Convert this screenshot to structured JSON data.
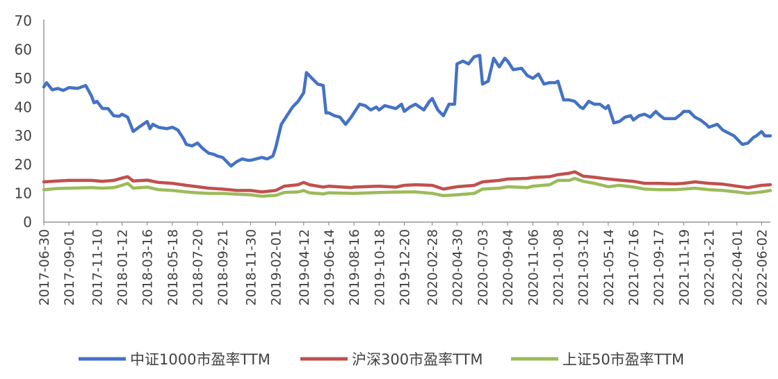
{
  "chart_data": {
    "type": "line",
    "title": "",
    "xlabel": "",
    "ylabel": "",
    "ylim": [
      0,
      70
    ],
    "yticks": [
      "0",
      "10",
      "20",
      "30",
      "40",
      "50",
      "60",
      "70"
    ],
    "grid": false,
    "legend_position": "bottom",
    "xtick_labels": [
      "2017-06-30",
      "2017-09-01",
      "2017-11-10",
      "2018-01-12",
      "2018-03-16",
      "2018-05-18",
      "2018-07-20",
      "2018-09-21",
      "2018-11-30",
      "2019-02-01",
      "2019-04-12",
      "2019-06-14",
      "2019-08-16",
      "2019-10-18",
      "2019-12-20",
      "2020-02-28",
      "2020-04-30",
      "2020-07-03",
      "2020-09-04",
      "2020-11-06",
      "2021-01-08",
      "2021-03-12",
      "2021-05-14",
      "2021-07-16",
      "2021-09-17",
      "2021-11-19",
      "2022-01-21",
      "2022-04-01",
      "2022-06-02"
    ],
    "series": [
      {
        "name": "中证1000市盈率TTM",
        "color": "#4472C4",
        "points": [
          [
            "2017-06-30",
            47
          ],
          [
            "2017-07-07",
            48.5
          ],
          [
            "2017-07-21",
            46
          ],
          [
            "2017-08-04",
            46.5
          ],
          [
            "2017-08-18",
            45.8
          ],
          [
            "2017-09-01",
            46.8
          ],
          [
            "2017-09-22",
            46.5
          ],
          [
            "2017-10-13",
            47.5
          ],
          [
            "2017-10-27",
            44
          ],
          [
            "2017-11-03",
            41.5
          ],
          [
            "2017-11-10",
            42
          ],
          [
            "2017-11-24",
            39.5
          ],
          [
            "2017-12-08",
            39.5
          ],
          [
            "2017-12-22",
            37
          ],
          [
            "2018-01-05",
            36.8
          ],
          [
            "2018-01-12",
            37.5
          ],
          [
            "2018-01-26",
            36.5
          ],
          [
            "2018-02-02",
            34
          ],
          [
            "2018-02-09",
            31.5
          ],
          [
            "2018-02-23",
            33
          ],
          [
            "2018-03-16",
            35
          ],
          [
            "2018-03-23",
            32.5
          ],
          [
            "2018-03-30",
            34
          ],
          [
            "2018-04-13",
            33
          ],
          [
            "2018-05-04",
            32.5
          ],
          [
            "2018-05-18",
            33
          ],
          [
            "2018-06-01",
            32
          ],
          [
            "2018-06-15",
            29
          ],
          [
            "2018-06-22",
            27
          ],
          [
            "2018-07-06",
            26.5
          ],
          [
            "2018-07-20",
            27.5
          ],
          [
            "2018-08-03",
            25.5
          ],
          [
            "2018-08-17",
            24
          ],
          [
            "2018-08-31",
            23.5
          ],
          [
            "2018-09-07",
            23
          ],
          [
            "2018-09-21",
            22.5
          ],
          [
            "2018-10-12",
            19.5
          ],
          [
            "2018-10-26",
            21
          ],
          [
            "2018-11-09",
            22
          ],
          [
            "2018-11-23",
            21.5
          ],
          [
            "2018-11-30",
            21.5
          ],
          [
            "2018-12-14",
            22
          ],
          [
            "2018-12-28",
            22.5
          ],
          [
            "2019-01-11",
            22
          ],
          [
            "2019-01-25",
            23
          ],
          [
            "2019-02-01",
            26
          ],
          [
            "2019-02-15",
            34
          ],
          [
            "2019-03-01",
            37
          ],
          [
            "2019-03-15",
            40
          ],
          [
            "2019-03-29",
            42
          ],
          [
            "2019-04-12",
            45
          ],
          [
            "2019-04-19",
            52
          ],
          [
            "2019-05-03",
            50
          ],
          [
            "2019-05-17",
            48
          ],
          [
            "2019-05-31",
            47.5
          ],
          [
            "2019-06-07",
            38
          ],
          [
            "2019-06-14",
            38
          ],
          [
            "2019-06-28",
            37
          ],
          [
            "2019-07-12",
            36.5
          ],
          [
            "2019-07-26",
            34
          ],
          [
            "2019-08-09",
            36.5
          ],
          [
            "2019-08-16",
            38
          ],
          [
            "2019-08-30",
            41
          ],
          [
            "2019-09-13",
            40.5
          ],
          [
            "2019-09-27",
            39
          ],
          [
            "2019-10-11",
            40
          ],
          [
            "2019-10-18",
            39
          ],
          [
            "2019-11-01",
            40.5
          ],
          [
            "2019-11-15",
            40
          ],
          [
            "2019-11-29",
            39.5
          ],
          [
            "2019-12-13",
            41
          ],
          [
            "2019-12-20",
            38.5
          ],
          [
            "2020-01-03",
            40
          ],
          [
            "2020-01-17",
            41
          ],
          [
            "2020-02-07",
            39
          ],
          [
            "2020-02-21",
            42
          ],
          [
            "2020-02-28",
            43
          ],
          [
            "2020-03-13",
            39
          ],
          [
            "2020-03-27",
            37
          ],
          [
            "2020-04-10",
            41
          ],
          [
            "2020-04-24",
            41
          ],
          [
            "2020-04-30",
            55
          ],
          [
            "2020-05-15",
            56
          ],
          [
            "2020-05-29",
            55
          ],
          [
            "2020-06-12",
            57.5
          ],
          [
            "2020-06-26",
            58
          ],
          [
            "2020-07-03",
            48
          ],
          [
            "2020-07-17",
            49
          ],
          [
            "2020-07-31",
            57
          ],
          [
            "2020-08-14",
            54
          ],
          [
            "2020-08-28",
            57
          ],
          [
            "2020-09-04",
            56
          ],
          [
            "2020-09-18",
            53
          ],
          [
            "2020-10-09",
            53.5
          ],
          [
            "2020-10-23",
            51
          ],
          [
            "2020-11-06",
            50
          ],
          [
            "2020-11-20",
            51.5
          ],
          [
            "2020-12-04",
            48
          ],
          [
            "2020-12-18",
            48.5
          ],
          [
            "2021-01-01",
            48.5
          ],
          [
            "2021-01-08",
            49
          ],
          [
            "2021-01-22",
            42.5
          ],
          [
            "2021-02-05",
            42.5
          ],
          [
            "2021-02-19",
            42
          ],
          [
            "2021-03-05",
            40
          ],
          [
            "2021-03-12",
            39.5
          ],
          [
            "2021-03-26",
            42
          ],
          [
            "2021-04-09",
            41
          ],
          [
            "2021-04-23",
            41
          ],
          [
            "2021-05-07",
            39.5
          ],
          [
            "2021-05-14",
            40.5
          ],
          [
            "2021-05-28",
            34.5
          ],
          [
            "2021-06-11",
            35
          ],
          [
            "2021-06-25",
            36.5
          ],
          [
            "2021-07-09",
            37
          ],
          [
            "2021-07-16",
            35.5
          ],
          [
            "2021-07-30",
            37
          ],
          [
            "2021-08-13",
            37.5
          ],
          [
            "2021-08-27",
            36.5
          ],
          [
            "2021-09-10",
            38.5
          ],
          [
            "2021-09-17",
            37.5
          ],
          [
            "2021-10-01",
            36
          ],
          [
            "2021-10-15",
            36
          ],
          [
            "2021-10-29",
            36
          ],
          [
            "2021-11-12",
            37.5
          ],
          [
            "2021-11-19",
            38.5
          ],
          [
            "2021-12-03",
            38.5
          ],
          [
            "2021-12-17",
            36.5
          ],
          [
            "2021-12-31",
            35.5
          ],
          [
            "2022-01-14",
            34
          ],
          [
            "2022-01-21",
            33
          ],
          [
            "2022-02-11",
            34
          ],
          [
            "2022-02-25",
            32
          ],
          [
            "2022-03-11",
            31
          ],
          [
            "2022-03-25",
            30
          ],
          [
            "2022-04-01",
            29
          ],
          [
            "2022-04-15",
            27
          ],
          [
            "2022-04-29",
            27.5
          ],
          [
            "2022-05-13",
            29.5
          ],
          [
            "2022-05-20",
            30
          ],
          [
            "2022-06-02",
            31.5
          ],
          [
            "2022-06-10",
            30
          ],
          [
            "2022-06-24",
            30
          ]
        ]
      },
      {
        "name": "沪深300市盈率TTM",
        "color": "#C0504D",
        "points": [
          [
            "2017-06-30",
            14
          ],
          [
            "2017-08-04",
            14.3
          ],
          [
            "2017-09-01",
            14.5
          ],
          [
            "2017-10-27",
            14.5
          ],
          [
            "2017-11-24",
            14.2
          ],
          [
            "2017-12-22",
            14.5
          ],
          [
            "2018-01-12",
            15.3
          ],
          [
            "2018-01-26",
            15.8
          ],
          [
            "2018-02-09",
            14.3
          ],
          [
            "2018-03-16",
            14.6
          ],
          [
            "2018-04-13",
            13.8
          ],
          [
            "2018-05-18",
            13.5
          ],
          [
            "2018-06-22",
            12.8
          ],
          [
            "2018-07-20",
            12.3
          ],
          [
            "2018-08-17",
            11.8
          ],
          [
            "2018-09-21",
            11.5
          ],
          [
            "2018-10-26",
            11
          ],
          [
            "2018-11-30",
            11
          ],
          [
            "2018-12-28",
            10.5
          ],
          [
            "2019-02-01",
            11
          ],
          [
            "2019-02-22",
            12.5
          ],
          [
            "2019-03-29",
            13
          ],
          [
            "2019-04-12",
            13.8
          ],
          [
            "2019-04-26",
            13
          ],
          [
            "2019-05-31",
            12.2
          ],
          [
            "2019-06-14",
            12.5
          ],
          [
            "2019-08-09",
            12
          ],
          [
            "2019-08-16",
            12.2
          ],
          [
            "2019-09-27",
            12.4
          ],
          [
            "2019-10-18",
            12.5
          ],
          [
            "2019-11-29",
            12.2
          ],
          [
            "2019-12-20",
            12.8
          ],
          [
            "2020-01-17",
            13
          ],
          [
            "2020-02-28",
            12.8
          ],
          [
            "2020-03-27",
            11.5
          ],
          [
            "2020-04-30",
            12.3
          ],
          [
            "2020-06-12",
            12.8
          ],
          [
            "2020-07-03",
            14
          ],
          [
            "2020-08-14",
            14.5
          ],
          [
            "2020-09-04",
            15
          ],
          [
            "2020-10-23",
            15.2
          ],
          [
            "2020-11-06",
            15.5
          ],
          [
            "2020-12-18",
            15.8
          ],
          [
            "2021-01-08",
            16.5
          ],
          [
            "2021-02-05",
            17
          ],
          [
            "2021-02-19",
            17.5
          ],
          [
            "2021-03-12",
            16
          ],
          [
            "2021-04-09",
            15.6
          ],
          [
            "2021-05-14",
            15
          ],
          [
            "2021-06-11",
            14.6
          ],
          [
            "2021-07-16",
            14.2
          ],
          [
            "2021-08-13",
            13.5
          ],
          [
            "2021-09-17",
            13.5
          ],
          [
            "2021-10-29",
            13.3
          ],
          [
            "2021-11-19",
            13.5
          ],
          [
            "2021-12-17",
            14
          ],
          [
            "2022-01-21",
            13.5
          ],
          [
            "2022-02-25",
            13.2
          ],
          [
            "2022-04-01",
            12.5
          ],
          [
            "2022-04-29",
            12
          ],
          [
            "2022-06-02",
            12.8
          ],
          [
            "2022-06-24",
            13
          ]
        ]
      },
      {
        "name": "上证50市盈率TTM",
        "color": "#9BBB59",
        "points": [
          [
            "2017-06-30",
            11.3
          ],
          [
            "2017-08-04",
            11.7
          ],
          [
            "2017-09-01",
            11.8
          ],
          [
            "2017-10-27",
            12
          ],
          [
            "2017-11-24",
            11.8
          ],
          [
            "2017-12-22",
            12
          ],
          [
            "2018-01-12",
            12.8
          ],
          [
            "2018-01-26",
            13.5
          ],
          [
            "2018-02-09",
            11.8
          ],
          [
            "2018-03-16",
            12.2
          ],
          [
            "2018-04-13",
            11.3
          ],
          [
            "2018-05-18",
            11
          ],
          [
            "2018-06-22",
            10.5
          ],
          [
            "2018-07-20",
            10.2
          ],
          [
            "2018-08-17",
            10
          ],
          [
            "2018-09-21",
            10
          ],
          [
            "2018-10-26",
            9.7
          ],
          [
            "2018-11-30",
            9.5
          ],
          [
            "2018-12-28",
            9
          ],
          [
            "2019-02-01",
            9.3
          ],
          [
            "2019-02-22",
            10.3
          ],
          [
            "2019-03-29",
            10.5
          ],
          [
            "2019-04-12",
            11
          ],
          [
            "2019-04-26",
            10.2
          ],
          [
            "2019-05-31",
            9.8
          ],
          [
            "2019-06-14",
            10.2
          ],
          [
            "2019-08-16",
            10
          ],
          [
            "2019-10-18",
            10.3
          ],
          [
            "2019-12-20",
            10.5
          ],
          [
            "2020-01-17",
            10.5
          ],
          [
            "2020-02-28",
            10
          ],
          [
            "2020-03-27",
            9.2
          ],
          [
            "2020-04-30",
            9.5
          ],
          [
            "2020-06-12",
            10
          ],
          [
            "2020-07-03",
            11.5
          ],
          [
            "2020-08-14",
            11.8
          ],
          [
            "2020-09-04",
            12.3
          ],
          [
            "2020-10-23",
            12
          ],
          [
            "2020-11-06",
            12.5
          ],
          [
            "2020-12-18",
            13
          ],
          [
            "2021-01-08",
            14.5
          ],
          [
            "2021-02-05",
            14.5
          ],
          [
            "2021-02-19",
            15.2
          ],
          [
            "2021-03-12",
            14.2
          ],
          [
            "2021-04-09",
            13.5
          ],
          [
            "2021-05-14",
            12.3
          ],
          [
            "2021-06-11",
            12.8
          ],
          [
            "2021-07-16",
            12.2
          ],
          [
            "2021-08-13",
            11.5
          ],
          [
            "2021-09-17",
            11.3
          ],
          [
            "2021-10-29",
            11.3
          ],
          [
            "2021-11-19",
            11.5
          ],
          [
            "2021-12-17",
            11.8
          ],
          [
            "2022-01-21",
            11.3
          ],
          [
            "2022-02-25",
            11
          ],
          [
            "2022-04-01",
            10.5
          ],
          [
            "2022-04-29",
            10
          ],
          [
            "2022-06-02",
            10.5
          ],
          [
            "2022-06-24",
            11
          ]
        ]
      }
    ]
  }
}
